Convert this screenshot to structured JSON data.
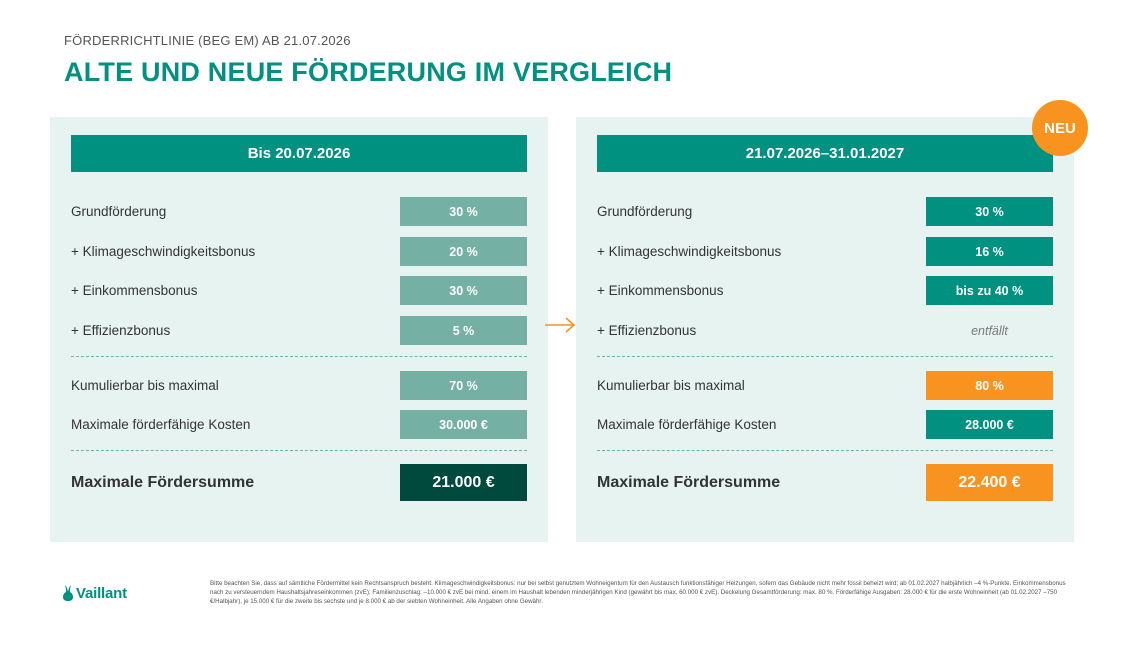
{
  "header": {
    "subtitle": "FÖRDERRICHTLINIE (BEG EM) AB 21.07.2026",
    "title": "ALTE UND NEUE FÖRDERUNG IM VERGLEICH"
  },
  "left_panel": {
    "heading": "Bis 20.07.2026",
    "rows": [
      {
        "label": "Grundförderung",
        "value": "30 %"
      },
      {
        "label": "+ Klimageschwindigkeitsbonus",
        "value": "20 %"
      },
      {
        "label": "+ Einkommensbonus",
        "value": "30 %"
      },
      {
        "label": "+ Effizienzbonus",
        "value": "5 %"
      }
    ],
    "summary": [
      {
        "label": "Kumulierbar bis maximal",
        "value": "70 %"
      },
      {
        "label": "Maximale förderfähige Kosten",
        "value": "30.000 €"
      }
    ],
    "total": {
      "label": "Maximale Fördersumme",
      "value": "21.000 €"
    }
  },
  "right_panel": {
    "heading": "21.07.2026–31.01.2027",
    "badge": "NEU",
    "rows": [
      {
        "label": "Grundförderung",
        "value": "30 %"
      },
      {
        "label": "+ Klimageschwindigkeitsbonus",
        "value": "16 %"
      },
      {
        "label": "+ Einkommensbonus",
        "value": "bis zu 40 %"
      },
      {
        "label": "+ Effizienzbonus",
        "value": "entfällt"
      }
    ],
    "summary": [
      {
        "label": "Kumulierbar bis maximal",
        "value": "80 %"
      },
      {
        "label": "Maximale förderfähige Kosten",
        "value": "28.000 €"
      }
    ],
    "total": {
      "label": "Maximale Fördersumme",
      "value": "22.400 €"
    }
  },
  "footer": {
    "logo_text": "Vaillant",
    "logo_icon": "hare-icon",
    "footnote": "Bitte beachten Sie, dass auf sämtliche Fördermittel kein Rechtsanspruch besteht. Klimageschwindigkeitsbonus: nur bei selbst genutztem Wohneigentum für den Austausch funktionsfähiger Heizungen, sofern das Gebäude nicht mehr fossil beheizt wird; ab 01.02.2027 halbjährlich –4 %-Punkte. Einkommensbonus nach zu versteuerndem Haushaltsjahreseinkommen (zvE); Familienzuschlag: –10.000 € zvE bei mind. einem im Haushalt lebenden minderjährigen Kind (gewährt bis max. 60.000 € zvE). Deckelung Gesamtförderung: max. 80 %. Förderfähige Ausgaben: 28.000 € für die erste Wohneinheit (ab 01.02.2027 –750 €/Halbjahr), je 15.000 € für die zweite bis sechste und je 8.000 € ab der siebten Wohneinheit. Alle Angaben ohne Gewähr."
  },
  "colors": {
    "brand_teal": "#009180",
    "muted_teal": "#74b0a4",
    "dark_teal": "#00493d",
    "accent_orange": "#f7931e",
    "panel_bg": "#e7f3f1"
  },
  "arrow_icon": "arrow-right-icon"
}
